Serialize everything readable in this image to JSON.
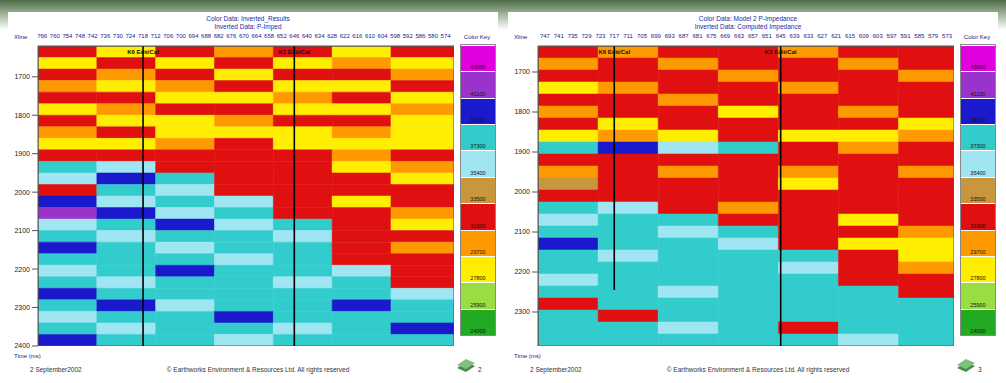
{
  "chart_data": [
    {
      "type": "heatmap",
      "title": "Color Data: Inverted_Results",
      "subtitle": "Inverted Data: P-Imped",
      "x_label": "Xline",
      "y_label": "Time (ms)",
      "xlim": [
        768,
        570
      ],
      "xticks": [
        766,
        760,
        754,
        748,
        742,
        736,
        730,
        724,
        718,
        712,
        706,
        700,
        694,
        688,
        682,
        676,
        670,
        664,
        658,
        652,
        646,
        640,
        634,
        628,
        622,
        616,
        610,
        604,
        598,
        592,
        586,
        580,
        574
      ],
      "ylim": [
        1620,
        2400
      ],
      "yticks": [
        1700,
        1800,
        1900,
        2000,
        2100,
        2200,
        2300,
        2400
      ],
      "x": [
        768,
        740,
        712,
        684,
        656,
        628,
        600,
        570
      ],
      "y": [
        1620,
        1650,
        1680,
        1710,
        1740,
        1770,
        1800,
        1830,
        1860,
        1890,
        1920,
        1950,
        1980,
        2010,
        2040,
        2070,
        2100,
        2130,
        2160,
        2190,
        2220,
        2250,
        2280,
        2310,
        2340,
        2370,
        2400
      ],
      "cells": [
        [
          31600,
          27800,
          31600,
          29700,
          31600,
          27800,
          31600
        ],
        [
          27800,
          31600,
          27800,
          31600,
          27800,
          29700,
          27800
        ],
        [
          31600,
          29700,
          31600,
          27800,
          31600,
          31600,
          29700
        ],
        [
          29700,
          27800,
          29700,
          31600,
          27800,
          27800,
          31600
        ],
        [
          31600,
          31600,
          27800,
          27800,
          29700,
          31600,
          27800
        ],
        [
          27800,
          29700,
          31600,
          31600,
          27800,
          27800,
          29700
        ],
        [
          31600,
          27800,
          27800,
          29700,
          31600,
          31600,
          27800
        ],
        [
          29700,
          31600,
          27800,
          27800,
          27800,
          29700,
          27800
        ],
        [
          27800,
          27800,
          29700,
          31600,
          27800,
          27800,
          27800
        ],
        [
          31600,
          31600,
          31600,
          31600,
          31600,
          29700,
          31600
        ],
        [
          37300,
          35400,
          31600,
          31600,
          31600,
          27800,
          29700
        ],
        [
          35400,
          39200,
          37300,
          31600,
          31600,
          31600,
          27800
        ],
        [
          31600,
          37300,
          35400,
          31600,
          31600,
          31600,
          31600
        ],
        [
          39200,
          35400,
          37300,
          35400,
          31600,
          27800,
          31600
        ],
        [
          41100,
          39200,
          35400,
          37300,
          31600,
          31600,
          29700
        ],
        [
          35400,
          37300,
          39200,
          35400,
          37300,
          31600,
          27800
        ],
        [
          37300,
          35400,
          37300,
          37300,
          35400,
          31600,
          31600
        ],
        [
          39200,
          37300,
          35400,
          37300,
          37300,
          31600,
          29700
        ],
        [
          37300,
          37300,
          37300,
          35400,
          37300,
          31600,
          31600
        ],
        [
          35400,
          37300,
          39200,
          37300,
          37300,
          35400,
          31600
        ],
        [
          37300,
          35400,
          37300,
          37300,
          35400,
          37300,
          31600
        ],
        [
          39200,
          37300,
          37300,
          37300,
          37300,
          37300,
          35400
        ],
        [
          37300,
          39200,
          35400,
          37300,
          37300,
          39200,
          37300
        ],
        [
          35400,
          37300,
          37300,
          39200,
          37300,
          37300,
          37300
        ],
        [
          37300,
          35400,
          37300,
          37300,
          35400,
          37300,
          39200
        ],
        [
          39200,
          37300,
          37300,
          35400,
          37300,
          37300,
          37300
        ]
      ],
      "colorbar_title": "Color Key",
      "colorbar_range": [
        23050,
        43950
      ],
      "colorbar_ticks": [
        24000,
        25900,
        27800,
        29700,
        31600,
        33500,
        35400,
        37300,
        39200,
        41100,
        43000
      ],
      "colorbar_colors": [
        "#22aa22",
        "#99dd44",
        "#ffee00",
        "#ff9900",
        "#e01010",
        "#c8963c",
        "#9fe6f2",
        "#33cccc",
        "#1a1acc",
        "#9933cc",
        "#e000e0"
      ],
      "wells": [
        {
          "name": "K6 Edit/Cal",
          "trace": 718,
          "time_range": [
            1620,
            2400
          ]
        },
        {
          "name": "K1 Edit/Cal",
          "trace": 646,
          "time_range": [
            1620,
            2400
          ]
        }
      ],
      "footer": "2 September2002",
      "copyright": "© Earthworks Environment & Resources Ltd.  All rights reserved",
      "page": 2
    },
    {
      "type": "heatmap",
      "title": "Color Data: Model 2 P-Impedance",
      "subtitle": "Inverted Data: Computed Impedance",
      "x_label": "Xline",
      "y_label": "Time (ms)",
      "xlim": [
        750,
        570
      ],
      "xticks": [
        747,
        741,
        735,
        729,
        723,
        717,
        711,
        705,
        699,
        693,
        687,
        681,
        675,
        669,
        663,
        657,
        651,
        645,
        639,
        633,
        627,
        621,
        615,
        609,
        603,
        597,
        591,
        585,
        579,
        573
      ],
      "ylim": [
        1635,
        2385
      ],
      "yticks": [
        1700,
        1800,
        1900,
        2000,
        2100,
        2200,
        2300
      ],
      "x": [
        750,
        724,
        698,
        672,
        646,
        620,
        594,
        570
      ],
      "y": [
        1635,
        1665,
        1695,
        1725,
        1755,
        1785,
        1815,
        1845,
        1875,
        1905,
        1935,
        1965,
        1995,
        2025,
        2055,
        2085,
        2115,
        2145,
        2175,
        2205,
        2235,
        2265,
        2295,
        2325,
        2355,
        2385
      ],
      "cells": [
        [
          31600,
          29700,
          31600,
          31600,
          29700,
          31600,
          31600
        ],
        [
          29700,
          31600,
          29700,
          31600,
          31600,
          29700,
          31600
        ],
        [
          31600,
          31600,
          31600,
          29700,
          31600,
          31600,
          29700
        ],
        [
          27800,
          29700,
          31600,
          31600,
          29700,
          31600,
          31600
        ],
        [
          31600,
          31600,
          29700,
          31600,
          31600,
          31600,
          31600
        ],
        [
          29700,
          31600,
          31600,
          27800,
          31600,
          29700,
          31600
        ],
        [
          31600,
          27800,
          31600,
          31600,
          31600,
          31600,
          27800
        ],
        [
          27800,
          29700,
          27800,
          31600,
          27800,
          27800,
          29700
        ],
        [
          37300,
          39200,
          35400,
          37300,
          31600,
          29700,
          31600
        ],
        [
          31600,
          31600,
          31600,
          31600,
          31600,
          31600,
          31600
        ],
        [
          29700,
          31600,
          29700,
          31600,
          29700,
          31600,
          29700
        ],
        [
          33500,
          31600,
          31600,
          31600,
          27800,
          31600,
          31600
        ],
        [
          31600,
          31600,
          31600,
          31600,
          31600,
          31600,
          31600
        ],
        [
          37300,
          35400,
          31600,
          29700,
          31600,
          31600,
          31600
        ],
        [
          35400,
          37300,
          37300,
          31600,
          31600,
          27800,
          31600
        ],
        [
          37300,
          37300,
          35400,
          37300,
          31600,
          31600,
          29700
        ],
        [
          39200,
          37300,
          37300,
          35400,
          31600,
          27800,
          27800
        ],
        [
          37300,
          35400,
          37300,
          37300,
          37300,
          31600,
          27800
        ],
        [
          37300,
          37300,
          37300,
          37300,
          35400,
          31600,
          29700
        ],
        [
          35400,
          37300,
          37300,
          37300,
          37300,
          31600,
          31600
        ],
        [
          37300,
          37300,
          35400,
          37300,
          37300,
          37300,
          31600
        ],
        [
          31600,
          37300,
          37300,
          37300,
          37300,
          37300,
          37300
        ],
        [
          37300,
          31600,
          37300,
          37300,
          37300,
          37300,
          37300
        ],
        [
          37300,
          37300,
          35400,
          37300,
          31600,
          37300,
          37300
        ],
        [
          37300,
          37300,
          37300,
          37300,
          37300,
          35400,
          37300
        ]
      ],
      "colorbar_title": "Color Key",
      "colorbar_range": [
        23050,
        43950
      ],
      "colorbar_ticks": [
        24000,
        25900,
        27800,
        29700,
        31600,
        33500,
        35400,
        37300,
        39200,
        41100,
        43000
      ],
      "colorbar_colors": [
        "#22aa22",
        "#99dd44",
        "#ffee00",
        "#ff9900",
        "#e01010",
        "#c8963c",
        "#9fe6f2",
        "#33cccc",
        "#1a1acc",
        "#9933cc",
        "#e000e0"
      ],
      "wells": [
        {
          "name": "K6 Edit/Cal",
          "trace": 717,
          "time_range": [
            1635,
            2245
          ]
        },
        {
          "name": "K1 Edit/Cal",
          "trace": 645,
          "time_range": [
            1635,
            2385
          ]
        }
      ],
      "footer": "2 September2002",
      "copyright": "© Earthworks Environment & Resources Ltd.  All rights reserved",
      "page": 3
    }
  ]
}
